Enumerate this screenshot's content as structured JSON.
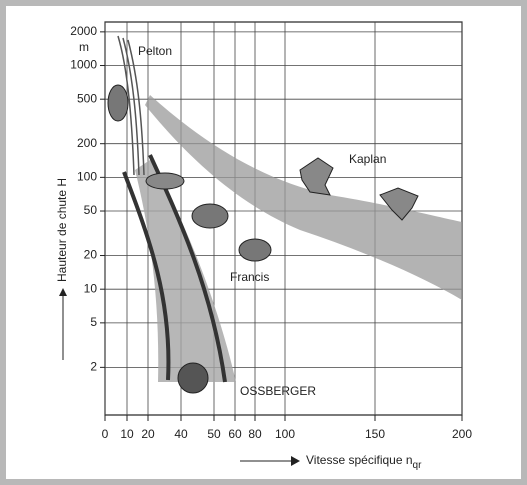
{
  "chart_data": {
    "type": "turbine-chart",
    "y_label": "Hauteur de chute H",
    "y_unit": "m",
    "x_label": "Vitesse spécifique n",
    "x_label_subscript": "qr",
    "yscale": "log",
    "ylim": [
      0.75,
      2450
    ],
    "yticks": [
      2,
      5,
      10,
      20,
      50,
      100,
      200,
      500,
      1000,
      2000
    ],
    "xlim": [
      0,
      200
    ],
    "xticks": [
      0,
      10,
      20,
      40,
      50,
      60,
      80,
      100,
      150,
      200
    ],
    "grid": true,
    "annotations": [
      "Pelton",
      "Kaplan",
      "Francis",
      "OSSBERGER"
    ]
  }
}
